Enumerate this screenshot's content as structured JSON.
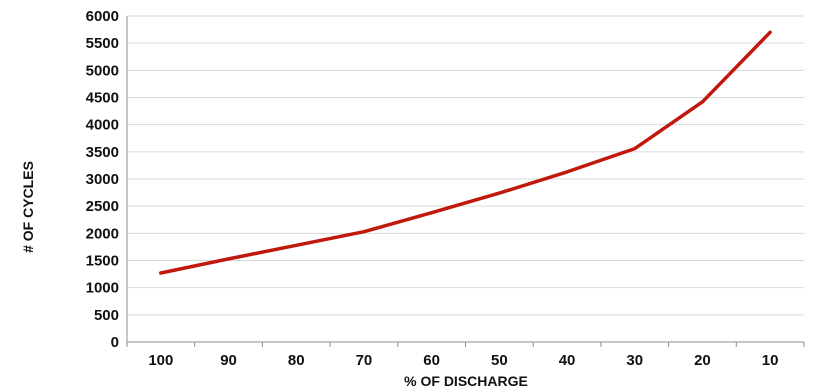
{
  "chart_data": {
    "type": "line",
    "title": "",
    "xlabel": "% OF DISCHARGE",
    "ylabel": "# OF CYCLES",
    "categories": [
      "100",
      "90",
      "80",
      "70",
      "60",
      "50",
      "40",
      "30",
      "20",
      "10"
    ],
    "series": [
      {
        "values": [
          1270,
          1530,
          1780,
          2030,
          2380,
          2740,
          3130,
          3560,
          4420,
          5700
        ],
        "color": "#c0190c"
      }
    ],
    "ylim": [
      0,
      6000
    ],
    "yticks": [
      0,
      500,
      1000,
      1500,
      2000,
      2500,
      3000,
      3500,
      4000,
      4500,
      5000,
      5500,
      6000
    ],
    "grid": true,
    "legend": "none",
    "colors": {
      "grid": "#d9d9d9",
      "axis": "#8c8c8c",
      "line": "#c0190c"
    }
  }
}
